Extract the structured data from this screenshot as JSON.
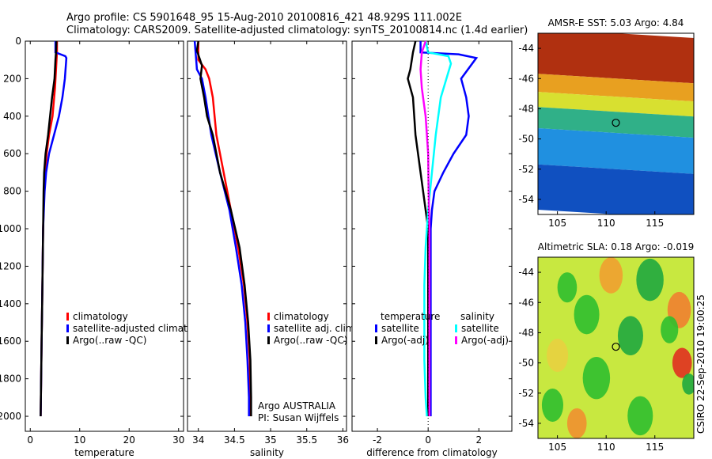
{
  "header": {
    "line1": "Argo profile: CS 5901648_95 15-Aug-2010 20100816_421 48.929S 111.002E",
    "line2": "Climatology: CARS2009. Satellite-adjusted climatology: synTS_20100814.nc (1.4d earlier)"
  },
  "footer_stamp": "CSIRO 22-Sep-2010 19:00:25",
  "colors": {
    "climatology": "#ff0000",
    "satellite": "#0000ff",
    "argo": "#000000",
    "sat_sal": "#00ffff",
    "argo_sal": "#ff00ff"
  },
  "chart_data": [
    {
      "type": "line",
      "id": "temperature",
      "xlabel": "temperature",
      "xlim": [
        -1,
        31
      ],
      "ylim": [
        2080,
        0
      ],
      "xticks": [
        0,
        10,
        20,
        30
      ],
      "yticks": [
        0,
        200,
        400,
        600,
        800,
        1000,
        1200,
        1400,
        1600,
        1800,
        2000
      ],
      "legend": [
        "climatology",
        "satellite-adjusted climatology",
        "Argo(..raw -QC)"
      ],
      "series": [
        {
          "name": "climatology",
          "color": "#ff0000",
          "points": [
            [
              5.4,
              0
            ],
            [
              5.4,
              60
            ],
            [
              5.2,
              150
            ],
            [
              5.0,
              250
            ],
            [
              4.5,
              400
            ],
            [
              3.8,
              500
            ],
            [
              3.3,
              600
            ],
            [
              3.0,
              700
            ],
            [
              2.8,
              800
            ],
            [
              2.6,
              1000
            ],
            [
              2.5,
              1200
            ],
            [
              2.4,
              1400
            ],
            [
              2.3,
              1600
            ],
            [
              2.2,
              1800
            ],
            [
              2.1,
              2000
            ]
          ]
        },
        {
          "name": "satellite-adjusted climatology",
          "color": "#0000ff",
          "points": [
            [
              5.1,
              0
            ],
            [
              5.1,
              60
            ],
            [
              7.1,
              80
            ],
            [
              7.3,
              90
            ],
            [
              7.0,
              200
            ],
            [
              6.5,
              300
            ],
            [
              5.8,
              400
            ],
            [
              4.8,
              500
            ],
            [
              3.8,
              600
            ],
            [
              3.2,
              700
            ],
            [
              2.9,
              800
            ],
            [
              2.6,
              1000
            ],
            [
              2.5,
              1200
            ],
            [
              2.4,
              1400
            ],
            [
              2.3,
              1600
            ],
            [
              2.2,
              1800
            ],
            [
              2.1,
              2000
            ]
          ]
        },
        {
          "name": "Argo(..raw -QC)",
          "color": "#000000",
          "points": [
            [
              5.3,
              0
            ],
            [
              5.2,
              60
            ],
            [
              5.1,
              100
            ],
            [
              4.9,
              200
            ],
            [
              4.4,
              300
            ],
            [
              4.0,
              400
            ],
            [
              3.6,
              500
            ],
            [
              3.1,
              600
            ],
            [
              2.8,
              700
            ],
            [
              2.7,
              800
            ],
            [
              2.6,
              1000
            ],
            [
              2.5,
              1200
            ],
            [
              2.4,
              1400
            ],
            [
              2.3,
              1600
            ],
            [
              2.2,
              1800
            ],
            [
              2.1,
              2000
            ]
          ]
        }
      ]
    },
    {
      "type": "line",
      "id": "salinity",
      "xlabel": "salinity",
      "xlim": [
        33.85,
        36.05
      ],
      "ylim": [
        2080,
        0
      ],
      "xticks": [
        34,
        34.5,
        35,
        35.5,
        36
      ],
      "legend": [
        "climatology",
        "satellite adj. clim.",
        "Argo(..raw -QC)"
      ],
      "annotation": [
        "Argo AUSTRALIA",
        "PI: Susan Wijffels"
      ],
      "series": [
        {
          "name": "climatology",
          "color": "#ff0000",
          "points": [
            [
              34.0,
              0
            ],
            [
              34.0,
              100
            ],
            [
              34.1,
              150
            ],
            [
              34.15,
              200
            ],
            [
              34.2,
              300
            ],
            [
              34.25,
              500
            ],
            [
              34.35,
              700
            ],
            [
              34.45,
              900
            ],
            [
              34.55,
              1100
            ],
            [
              34.63,
              1300
            ],
            [
              34.68,
              1500
            ],
            [
              34.71,
              1700
            ],
            [
              34.72,
              1900
            ],
            [
              34.72,
              2000
            ]
          ]
        },
        {
          "name": "satellite adj. clim.",
          "color": "#0000ff",
          "points": [
            [
              33.95,
              0
            ],
            [
              33.97,
              100
            ],
            [
              33.98,
              150
            ],
            [
              34.05,
              200
            ],
            [
              34.1,
              300
            ],
            [
              34.18,
              500
            ],
            [
              34.3,
              700
            ],
            [
              34.43,
              900
            ],
            [
              34.52,
              1100
            ],
            [
              34.6,
              1300
            ],
            [
              34.65,
              1500
            ],
            [
              34.68,
              1700
            ],
            [
              34.7,
              1900
            ],
            [
              34.7,
              2000
            ]
          ]
        },
        {
          "name": "Argo(..raw -QC)",
          "color": "#000000",
          "points": [
            [
              34.0,
              0
            ],
            [
              33.98,
              50
            ],
            [
              34.05,
              130
            ],
            [
              34.03,
              200
            ],
            [
              34.08,
              300
            ],
            [
              34.12,
              400
            ],
            [
              34.2,
              500
            ],
            [
              34.3,
              700
            ],
            [
              34.45,
              900
            ],
            [
              34.57,
              1100
            ],
            [
              34.64,
              1300
            ],
            [
              34.69,
              1500
            ],
            [
              34.72,
              1700
            ],
            [
              34.73,
              1900
            ],
            [
              34.73,
              2000
            ]
          ]
        }
      ]
    },
    {
      "type": "line",
      "id": "difference",
      "xlabel": "difference from climatology",
      "xlim": [
        -3.0,
        3.3
      ],
      "ylim": [
        2080,
        0
      ],
      "xticks": [
        -2,
        0,
        2
      ],
      "legend_temperature": [
        "temperature",
        "satellite",
        "Argo(-adj)"
      ],
      "legend_salinity": [
        "salinity",
        "satellite",
        "Argo(-adj)"
      ],
      "series": [
        {
          "name": "satellite",
          "group": "temperature",
          "color": "#0000ff",
          "points": [
            [
              -0.3,
              0
            ],
            [
              -0.3,
              60
            ],
            [
              1.2,
              70
            ],
            [
              1.9,
              90
            ],
            [
              1.3,
              200
            ],
            [
              1.5,
              300
            ],
            [
              1.6,
              400
            ],
            [
              1.5,
              500
            ],
            [
              1.0,
              600
            ],
            [
              0.6,
              700
            ],
            [
              0.25,
              800
            ],
            [
              0.15,
              900
            ],
            [
              0.1,
              1000
            ],
            [
              0.1,
              1200
            ],
            [
              0.1,
              1400
            ],
            [
              0.1,
              1600
            ],
            [
              0.1,
              1800
            ],
            [
              0.1,
              2000
            ]
          ]
        },
        {
          "name": "Argo(-adj)",
          "group": "temperature",
          "color": "#000000",
          "points": [
            [
              -0.5,
              0
            ],
            [
              -0.6,
              60
            ],
            [
              -0.7,
              150
            ],
            [
              -0.8,
              200
            ],
            [
              -0.6,
              300
            ],
            [
              -0.55,
              400
            ],
            [
              -0.5,
              500
            ],
            [
              -0.4,
              600
            ],
            [
              -0.3,
              700
            ],
            [
              -0.2,
              800
            ],
            [
              -0.1,
              900
            ],
            [
              0.0,
              1000
            ],
            [
              0.0,
              1200
            ],
            [
              0.0,
              1400
            ],
            [
              0.0,
              1600
            ],
            [
              0.0,
              1800
            ],
            [
              0.0,
              2000
            ]
          ]
        },
        {
          "name": "satellite",
          "group": "salinity",
          "color": "#00ffff",
          "points": [
            [
              -0.1,
              0
            ],
            [
              0.0,
              60
            ],
            [
              0.8,
              80
            ],
            [
              0.9,
              120
            ],
            [
              0.5,
              300
            ],
            [
              0.3,
              500
            ],
            [
              0.15,
              700
            ],
            [
              0.0,
              900
            ],
            [
              -0.1,
              1100
            ],
            [
              -0.15,
              1300
            ],
            [
              -0.15,
              1500
            ],
            [
              -0.15,
              1700
            ],
            [
              -0.1,
              1900
            ],
            [
              -0.05,
              2000
            ]
          ]
        },
        {
          "name": "Argo(-adj)",
          "group": "salinity",
          "color": "#ff00ff",
          "points": [
            [
              -0.1,
              0
            ],
            [
              -0.25,
              60
            ],
            [
              -0.3,
              150
            ],
            [
              -0.25,
              250
            ],
            [
              -0.1,
              400
            ],
            [
              0.0,
              600
            ],
            [
              0.02,
              800
            ],
            [
              0.05,
              1000
            ],
            [
              0.05,
              1200
            ],
            [
              0.05,
              1400
            ],
            [
              0.05,
              1600
            ],
            [
              0.05,
              1800
            ],
            [
              0.05,
              2000
            ]
          ]
        }
      ]
    },
    {
      "type": "heatmap",
      "id": "sst_map",
      "title": "AMSR-E SST: 5.03 Argo: 4.84",
      "xlim": [
        103,
        119
      ],
      "ylim": [
        -55,
        -43
      ],
      "xticks": [
        105,
        110,
        115
      ],
      "yticks": [
        -44,
        -46,
        -48,
        -50,
        -52,
        -54
      ],
      "marker": [
        111.0,
        -48.93
      ],
      "bands": [
        {
          "from": -43.0,
          "to": -46.0,
          "color": "#b03010"
        },
        {
          "from": -46.0,
          "to": -47.2,
          "color": "#e8a020"
        },
        {
          "from": -47.2,
          "to": -48.2,
          "color": "#d8e030"
        },
        {
          "from": -48.2,
          "to": -49.6,
          "color": "#30b088"
        },
        {
          "from": -49.6,
          "to": -52.0,
          "color": "#2090e0"
        },
        {
          "from": -52.0,
          "to": -55.0,
          "color": "#1050c0"
        }
      ]
    },
    {
      "type": "heatmap",
      "id": "sla_map",
      "title": "Altimetric SLA: 0.18 Argo: -0.019",
      "xlim": [
        103,
        119
      ],
      "ylim": [
        -55,
        -43
      ],
      "xticks": [
        105,
        110,
        115
      ],
      "yticks": [
        -44,
        -46,
        -48,
        -50,
        -52,
        -54
      ],
      "marker": [
        111.0,
        -48.93
      ],
      "base_color": "#c8e840",
      "patches": [
        {
          "cx": 106.0,
          "cy": -45.0,
          "r": 1.0,
          "color": "#2fbf2f"
        },
        {
          "cx": 110.5,
          "cy": -44.2,
          "r": 1.2,
          "color": "#f0a030"
        },
        {
          "cx": 114.5,
          "cy": -44.5,
          "r": 1.4,
          "color": "#1fa83f"
        },
        {
          "cx": 108.0,
          "cy": -46.8,
          "r": 1.3,
          "color": "#2fbf2f"
        },
        {
          "cx": 117.5,
          "cy": -46.5,
          "r": 1.2,
          "color": "#f08030"
        },
        {
          "cx": 112.5,
          "cy": -48.2,
          "r": 1.3,
          "color": "#1fa83f"
        },
        {
          "cx": 105.0,
          "cy": -49.5,
          "r": 1.1,
          "color": "#e8d040"
        },
        {
          "cx": 109.0,
          "cy": -51.0,
          "r": 1.4,
          "color": "#2fbf2f"
        },
        {
          "cx": 117.8,
          "cy": -50.0,
          "r": 1.0,
          "color": "#e03020"
        },
        {
          "cx": 118.5,
          "cy": -51.4,
          "r": 0.7,
          "color": "#1fa83f"
        },
        {
          "cx": 104.5,
          "cy": -52.8,
          "r": 1.1,
          "color": "#2fbf2f"
        },
        {
          "cx": 113.5,
          "cy": -53.5,
          "r": 1.3,
          "color": "#2fbf2f"
        },
        {
          "cx": 107.0,
          "cy": -54.0,
          "r": 1.0,
          "color": "#f09030"
        },
        {
          "cx": 116.5,
          "cy": -47.8,
          "r": 0.9,
          "color": "#2fbf2f"
        }
      ]
    }
  ]
}
